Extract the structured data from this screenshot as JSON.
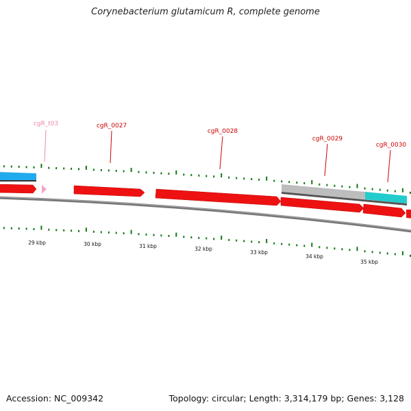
{
  "title": "Corynebacterium glutamicum R, complete genome",
  "footer": {
    "accession": "Accession: NC_009342",
    "stats": "Topology: circular; Length: 3,314,179 bp; Genes: 3,128"
  },
  "colors": {
    "gene": "#ee1111",
    "rna": "#f2a6c8",
    "label_gene": "#cc0000",
    "label_rna": "#ee88aa",
    "tick": "#117711",
    "backbone": "#888888",
    "band_gray": "#bdbdbd",
    "band_blue": "#22aaee",
    "band_cyan": "#22cccc"
  },
  "scale_labels": [
    "29 kbp",
    "30 kbp",
    "31 kbp",
    "32 kbp",
    "33 kbp",
    "34 kbp",
    "35 kbp"
  ],
  "gene_labels": [
    {
      "name": "cgR_t03",
      "type": "rna"
    },
    {
      "name": "cgR_0027",
      "type": "gene"
    },
    {
      "name": "cgR_0028",
      "type": "gene"
    },
    {
      "name": "cgR_0029",
      "type": "gene"
    },
    {
      "name": "cgR_0030",
      "type": "gene"
    }
  ]
}
